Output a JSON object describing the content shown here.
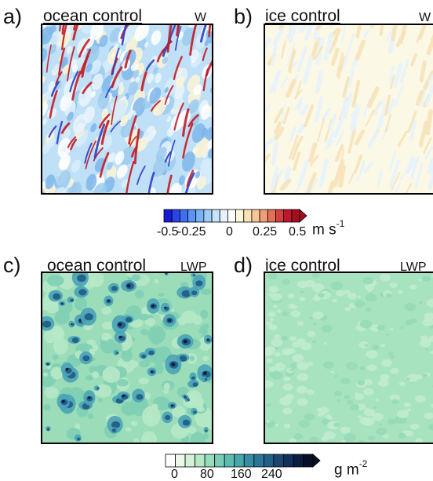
{
  "panels": [
    {
      "letter": "a)",
      "title": "ocean control",
      "variable": "W"
    },
    {
      "letter": "b)",
      "title": "ice control",
      "variable": "W"
    },
    {
      "letter": "c)",
      "title": "ocean control",
      "variable": "LWP"
    },
    {
      "letter": "d)",
      "title": "ice control",
      "variable": "LWP"
    }
  ],
  "colorbar_w": {
    "ticks": [
      "-0.5",
      "-0.25",
      "0",
      "0.25",
      "0.5"
    ],
    "unit_base": "m s",
    "unit_exp": "-1",
    "colors": [
      "#1a1ad6",
      "#2b44e6",
      "#3f6ff0",
      "#5a93f5",
      "#79b1f7",
      "#9fcdf8",
      "#c5e3fa",
      "#e6f3fc",
      "#ffffff",
      "#fdf6d8",
      "#fbe3b6",
      "#f7c596",
      "#f19f7a",
      "#e57058",
      "#d53f3c",
      "#c2162a",
      "#a30f1f"
    ]
  },
  "colorbar_lwp": {
    "ticks": [
      "0",
      "80",
      "160",
      "240"
    ],
    "unit_base": "g m",
    "unit_exp": "-2",
    "colors": [
      "#ffffff",
      "#ecf8e9",
      "#d4f1d8",
      "#b7e8c6",
      "#97dcbc",
      "#78cdb6",
      "#5bbcb1",
      "#45a6ab",
      "#358ea4",
      "#2b7698",
      "#235e88",
      "#1b4674",
      "#13305c",
      "#0c1d42",
      "#070e28"
    ]
  }
}
